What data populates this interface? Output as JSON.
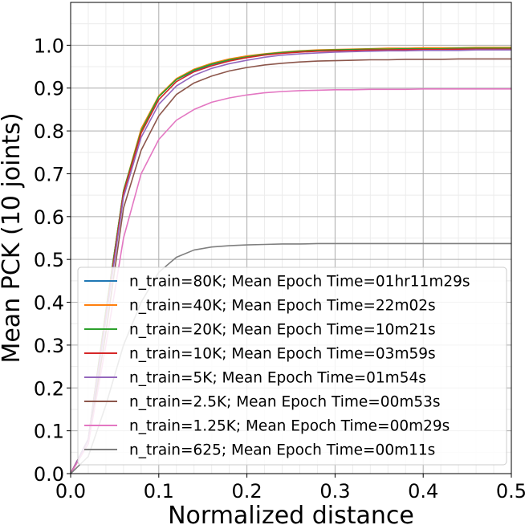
{
  "chart_data": {
    "type": "line",
    "title": "",
    "xlabel": "Normalized distance",
    "ylabel": "Mean PCK (10 joints)",
    "xlim": [
      0.0,
      0.5
    ],
    "ylim": [
      0.0,
      1.1
    ],
    "xticks": [
      "0.0",
      "0.1",
      "0.2",
      "0.3",
      "0.4",
      "0.5"
    ],
    "yticks": [
      "0.0",
      "0.1",
      "0.2",
      "0.3",
      "0.4",
      "0.5",
      "0.6",
      "0.7",
      "0.8",
      "0.9",
      "1.0"
    ],
    "grid": true,
    "minor_grid": true,
    "legend_position": "lower-right",
    "x": [
      0.0,
      0.02,
      0.04,
      0.06,
      0.08,
      0.1,
      0.12,
      0.14,
      0.16,
      0.18,
      0.2,
      0.22,
      0.24,
      0.26,
      0.28,
      0.3,
      0.32,
      0.34,
      0.36,
      0.38,
      0.4,
      0.42,
      0.44,
      0.46,
      0.48,
      0.5
    ],
    "series": [
      {
        "name": "n_train=80K; Mean Epoch Time=01hr11m29s",
        "color": "#1f77b4",
        "values": [
          0.0,
          0.08,
          0.38,
          0.66,
          0.8,
          0.88,
          0.92,
          0.94,
          0.955,
          0.965,
          0.972,
          0.978,
          0.982,
          0.985,
          0.987,
          0.988,
          0.989,
          0.99,
          0.99,
          0.991,
          0.991,
          0.991,
          0.992,
          0.992,
          0.992,
          0.992
        ]
      },
      {
        "name": "n_train=40K; Mean Epoch Time=22m02s",
        "color": "#ff7f0e",
        "values": [
          0.0,
          0.08,
          0.38,
          0.66,
          0.805,
          0.882,
          0.922,
          0.944,
          0.958,
          0.968,
          0.975,
          0.98,
          0.984,
          0.987,
          0.989,
          0.99,
          0.991,
          0.992,
          0.993,
          0.993,
          0.994,
          0.994,
          0.994,
          0.995,
          0.995,
          0.995
        ]
      },
      {
        "name": "n_train=20K; Mean Epoch Time=10m21s",
        "color": "#2ca02c",
        "values": [
          0.0,
          0.08,
          0.38,
          0.66,
          0.8,
          0.88,
          0.92,
          0.942,
          0.956,
          0.966,
          0.973,
          0.979,
          0.983,
          0.986,
          0.988,
          0.989,
          0.99,
          0.991,
          0.991,
          0.992,
          0.992,
          0.992,
          0.993,
          0.993,
          0.993,
          0.993
        ]
      },
      {
        "name": "n_train=10K; Mean Epoch Time=03m59s",
        "color": "#d62728",
        "values": [
          0.0,
          0.08,
          0.37,
          0.655,
          0.795,
          0.873,
          0.915,
          0.938,
          0.952,
          0.963,
          0.971,
          0.977,
          0.981,
          0.984,
          0.986,
          0.987,
          0.988,
          0.989,
          0.989,
          0.99,
          0.99,
          0.99,
          0.991,
          0.991,
          0.991,
          0.991
        ]
      },
      {
        "name": "n_train=5K; Mean Epoch Time=01m54s",
        "color": "#9467bd",
        "values": [
          0.0,
          0.08,
          0.36,
          0.645,
          0.785,
          0.862,
          0.905,
          0.93,
          0.946,
          0.957,
          0.965,
          0.972,
          0.977,
          0.98,
          0.982,
          0.984,
          0.985,
          0.986,
          0.987,
          0.987,
          0.988,
          0.988,
          0.988,
          0.989,
          0.989,
          0.989
        ]
      },
      {
        "name": "n_train=2.5K; Mean Epoch Time=00m53s",
        "color": "#8c564b",
        "values": [
          0.0,
          0.07,
          0.33,
          0.62,
          0.755,
          0.835,
          0.885,
          0.912,
          0.928,
          0.94,
          0.948,
          0.954,
          0.958,
          0.961,
          0.963,
          0.964,
          0.965,
          0.966,
          0.966,
          0.967,
          0.967,
          0.967,
          0.968,
          0.968,
          0.968,
          0.968
        ]
      },
      {
        "name": "n_train=1.25K; Mean Epoch Time=00m29s",
        "color": "#e377c2",
        "values": [
          0.0,
          0.07,
          0.3,
          0.55,
          0.7,
          0.78,
          0.825,
          0.85,
          0.867,
          0.877,
          0.884,
          0.889,
          0.892,
          0.894,
          0.895,
          0.896,
          0.896,
          0.897,
          0.897,
          0.897,
          0.898,
          0.898,
          0.898,
          0.898,
          0.898,
          0.898
        ]
      },
      {
        "name": "n_train=625; Mean Epoch Time=00m11s",
        "color": "#7f7f7f",
        "values": [
          0.0,
          0.04,
          0.16,
          0.3,
          0.4,
          0.47,
          0.505,
          0.522,
          0.529,
          0.532,
          0.534,
          0.535,
          0.536,
          0.536,
          0.537,
          0.537,
          0.537,
          0.537,
          0.537,
          0.537,
          0.537,
          0.537,
          0.537,
          0.537,
          0.537,
          0.537
        ]
      }
    ]
  }
}
